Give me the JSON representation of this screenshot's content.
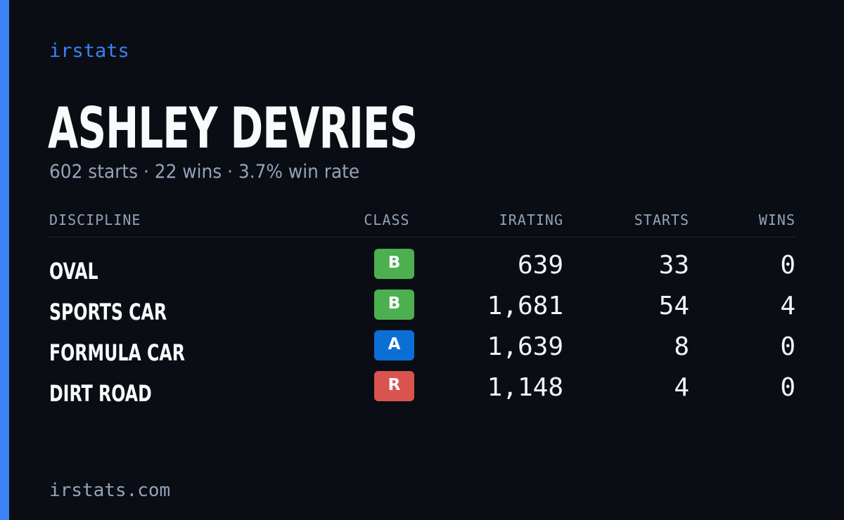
{
  "brand": "irstats",
  "driver": {
    "name": "ASHLEY DEVRIES",
    "summary": "602 starts · 22 wins · 3.7% win rate"
  },
  "table": {
    "headers": {
      "discipline": "DISCIPLINE",
      "class": "CLASS",
      "irating": "IRATING",
      "starts": "STARTS",
      "wins": "WINS"
    },
    "rows": [
      {
        "discipline": "OVAL",
        "class": "B",
        "class_color": "#4caf50",
        "irating": "639",
        "starts": "33",
        "wins": "0"
      },
      {
        "discipline": "SPORTS CAR",
        "class": "B",
        "class_color": "#4caf50",
        "irating": "1,681",
        "starts": "54",
        "wins": "4"
      },
      {
        "discipline": "FORMULA CAR",
        "class": "A",
        "class_color": "#0b6fd6",
        "irating": "1,639",
        "starts": "8",
        "wins": "0"
      },
      {
        "discipline": "DIRT ROAD",
        "class": "R",
        "class_color": "#d9534f",
        "irating": "1,148",
        "starts": "4",
        "wins": "0"
      }
    ]
  },
  "footer": "irstats.com",
  "colors": {
    "background": "#0a0d14",
    "accent": "#3b82f6",
    "muted_text": "#94a3b8",
    "primary_text": "#f8fafc"
  }
}
